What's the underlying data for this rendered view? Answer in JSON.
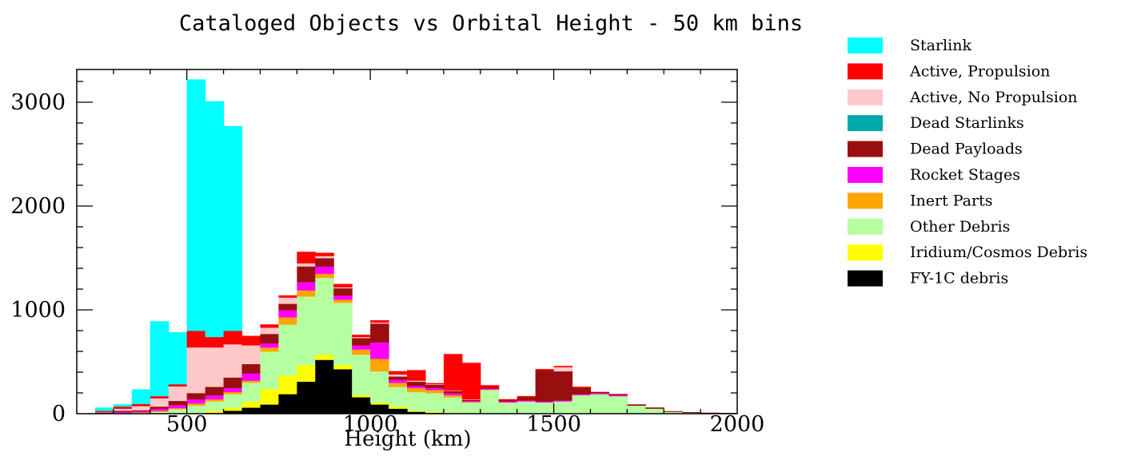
{
  "chart_data": {
    "type": "bar",
    "stacked": true,
    "title": "Cataloged Objects vs Orbital Height - 50 km bins",
    "xlabel": "Height (km)",
    "ylabel": "",
    "xlim": [
      200,
      2000
    ],
    "ylim": [
      0,
      3300
    ],
    "bin_width_km": 50,
    "xticks": [
      500,
      1000,
      1500,
      2000
    ],
    "yticks": [
      0,
      1000,
      2000,
      3000
    ],
    "legend_position": "right",
    "x": [
      250,
      300,
      350,
      400,
      450,
      500,
      550,
      600,
      650,
      700,
      750,
      800,
      850,
      900,
      950,
      1000,
      1050,
      1100,
      1150,
      1200,
      1250,
      1300,
      1350,
      1400,
      1450,
      1500,
      1550,
      1600,
      1650,
      1700,
      1750,
      1800,
      1850,
      1900,
      1950
    ],
    "series": [
      {
        "name": "FY-1C debris",
        "color": "#000000",
        "values": [
          0,
          0,
          0,
          0,
          0,
          0,
          10,
          30,
          60,
          90,
          190,
          310,
          520,
          430,
          160,
          90,
          50,
          20,
          10,
          5,
          0,
          0,
          0,
          0,
          0,
          0,
          0,
          0,
          0,
          0,
          0,
          0,
          0,
          0,
          0
        ]
      },
      {
        "name": "Iridium/Cosmos Debris",
        "color": "#ffff00",
        "values": [
          0,
          0,
          0,
          0,
          5,
          10,
          20,
          30,
          60,
          150,
          180,
          160,
          50,
          40,
          20,
          20,
          20,
          10,
          10,
          5,
          0,
          0,
          0,
          0,
          0,
          0,
          0,
          0,
          0,
          0,
          0,
          0,
          0,
          0,
          0
        ]
      },
      {
        "name": "Other Debris",
        "color": "#b5ffa0",
        "values": [
          2,
          5,
          10,
          20,
          40,
          70,
          90,
          130,
          180,
          360,
          490,
          660,
          740,
          600,
          390,
          300,
          190,
          180,
          180,
          150,
          110,
          230,
          110,
          120,
          110,
          120,
          180,
          190,
          170,
          80,
          50,
          20,
          10,
          5,
          3
        ]
      },
      {
        "name": "Inert Parts",
        "color": "#ffa500",
        "values": [
          2,
          5,
          5,
          10,
          10,
          20,
          20,
          20,
          20,
          40,
          70,
          60,
          40,
          30,
          50,
          120,
          40,
          40,
          30,
          20,
          5,
          5,
          0,
          0,
          0,
          0,
          0,
          0,
          0,
          0,
          0,
          0,
          0,
          0,
          0
        ]
      },
      {
        "name": "Rocket Stages",
        "color": "#ff00ff",
        "values": [
          5,
          10,
          10,
          20,
          30,
          40,
          40,
          40,
          70,
          40,
          70,
          80,
          70,
          40,
          40,
          160,
          30,
          20,
          20,
          20,
          10,
          10,
          10,
          10,
          10,
          10,
          10,
          10,
          10,
          0,
          0,
          0,
          0,
          0,
          0
        ]
      },
      {
        "name": "Dead Payloads",
        "color": "#990f0f",
        "values": [
          5,
          10,
          10,
          20,
          40,
          60,
          80,
          100,
          90,
          90,
          60,
          150,
          80,
          70,
          70,
          180,
          30,
          40,
          30,
          20,
          10,
          10,
          10,
          30,
          300,
          280,
          60,
          10,
          10,
          10,
          10,
          5,
          5,
          5,
          5
        ]
      },
      {
        "name": "Dead Starlinks",
        "color": "#00a8a8",
        "values": [
          0,
          0,
          0,
          0,
          0,
          0,
          0,
          0,
          0,
          0,
          0,
          0,
          0,
          0,
          0,
          0,
          0,
          0,
          0,
          0,
          0,
          0,
          0,
          0,
          0,
          0,
          0,
          0,
          0,
          0,
          0,
          0,
          0,
          0,
          0
        ]
      },
      {
        "name": "Active, No Propulsion",
        "color": "#ffc8c8",
        "values": [
          5,
          20,
          40,
          80,
          140,
          440,
          380,
          320,
          180,
          60,
          60,
          30,
          20,
          10,
          10,
          10,
          20,
          10,
          5,
          5,
          5,
          0,
          0,
          0,
          0,
          40,
          0,
          0,
          0,
          0,
          0,
          0,
          0,
          0,
          0
        ]
      },
      {
        "name": "Active, Propulsion",
        "color": "#ff0000",
        "values": [
          10,
          20,
          20,
          20,
          20,
          160,
          100,
          130,
          90,
          30,
          20,
          110,
          30,
          30,
          20,
          20,
          30,
          100,
          10,
          350,
          350,
          20,
          10,
          10,
          10,
          10,
          10,
          0,
          0,
          0,
          0,
          0,
          0,
          0,
          0
        ]
      },
      {
        "name": "Starlink",
        "color": "#00ffff",
        "values": [
          30,
          20,
          140,
          720,
          500,
          2420,
          2270,
          1970,
          0,
          0,
          0,
          0,
          0,
          0,
          0,
          0,
          0,
          0,
          0,
          0,
          0,
          0,
          0,
          0,
          0,
          0,
          0,
          0,
          0,
          0,
          0,
          0,
          0,
          0,
          0
        ]
      }
    ]
  }
}
